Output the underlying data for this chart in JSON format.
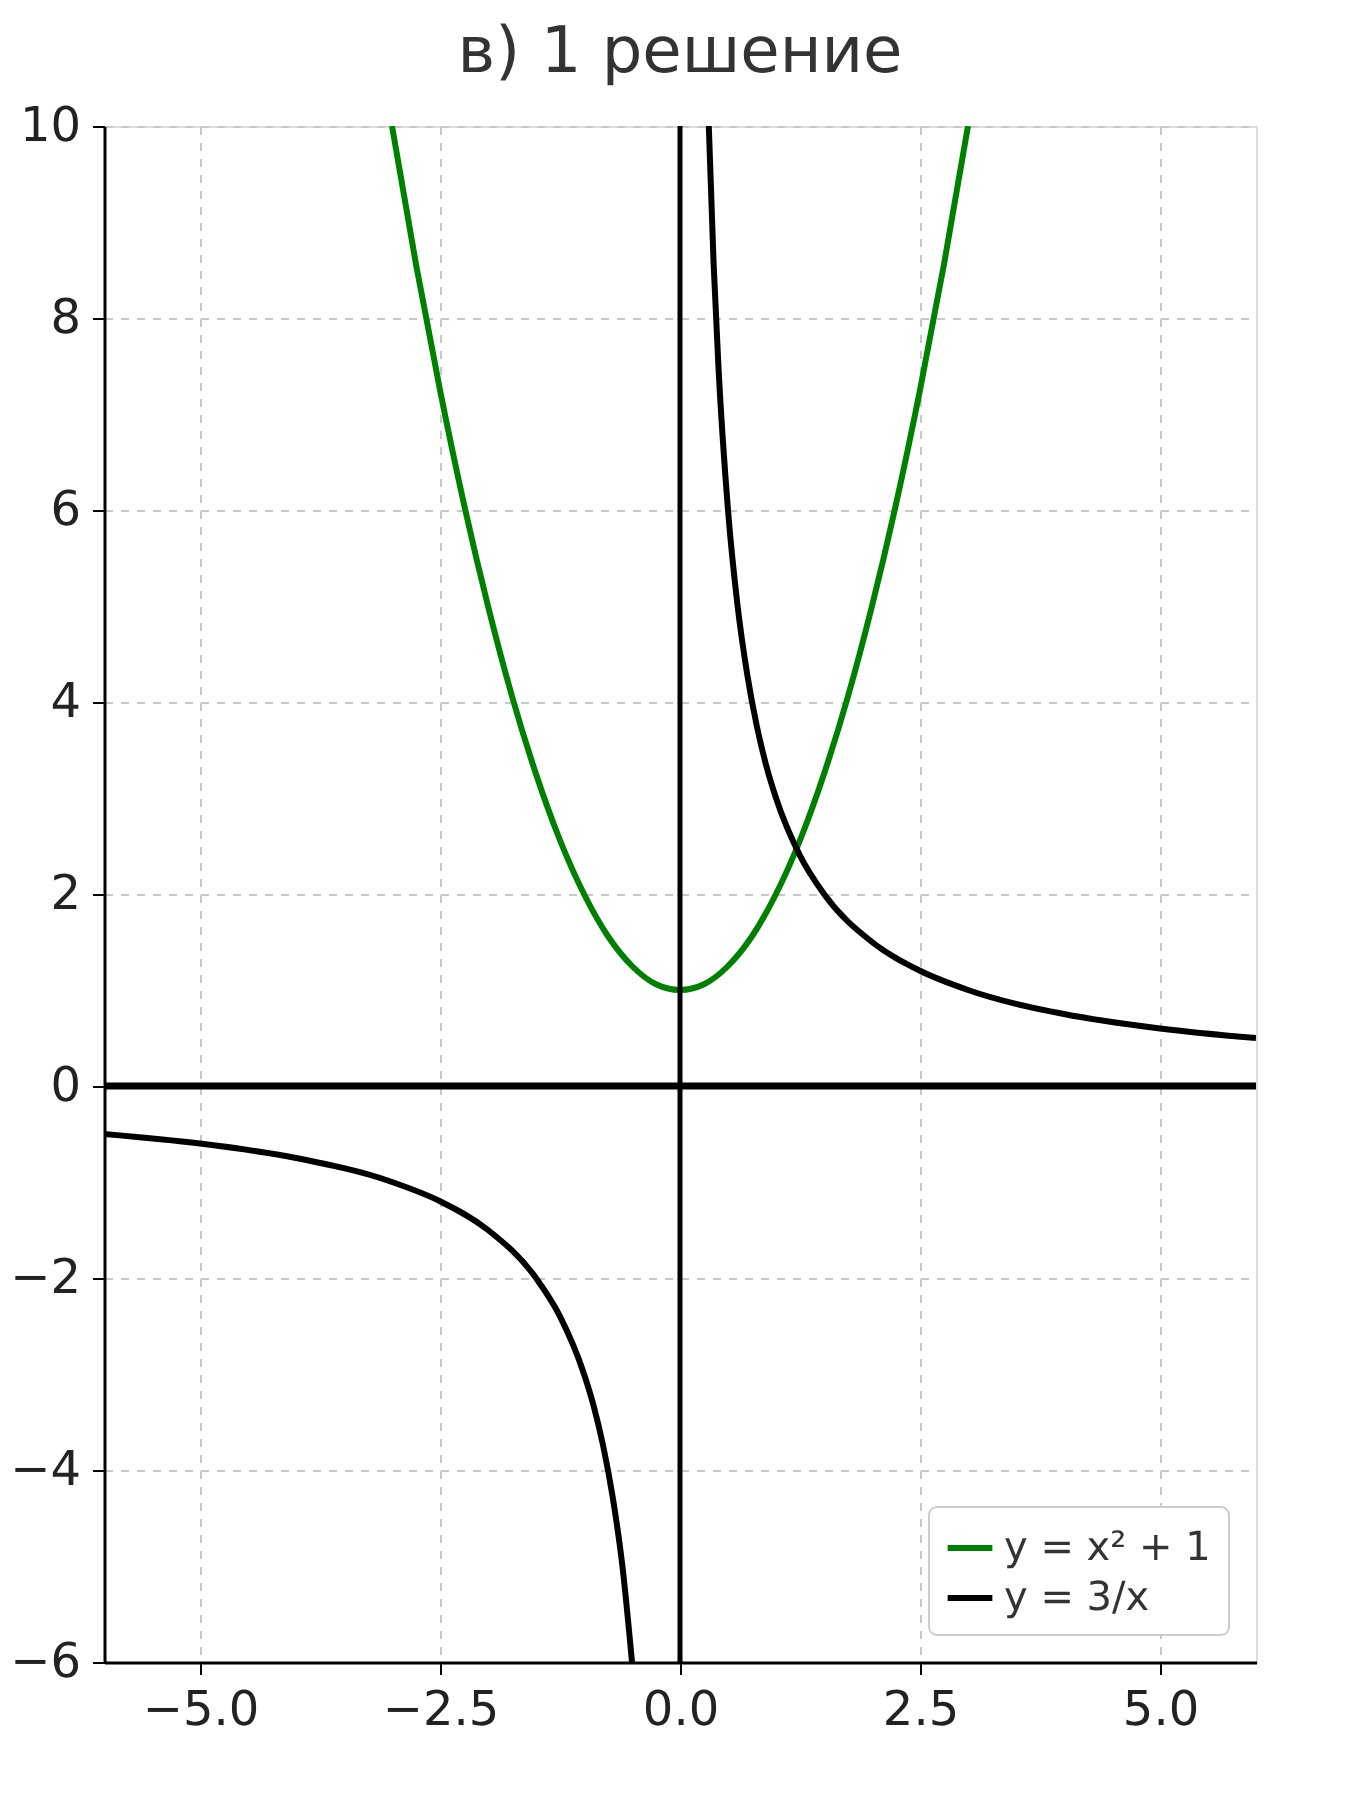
{
  "chart_data": {
    "type": "line",
    "title": "в) 1 решение",
    "xlim": [
      -6,
      6
    ],
    "ylim": [
      -6,
      10
    ],
    "xticks": [
      {
        "value": -5,
        "label": "−5.0"
      },
      {
        "value": -2.5,
        "label": "−2.5"
      },
      {
        "value": 0,
        "label": "0.0"
      },
      {
        "value": 2.5,
        "label": "2.5"
      },
      {
        "value": 5,
        "label": "5.0"
      }
    ],
    "yticks": [
      {
        "value": -6,
        "label": "−6"
      },
      {
        "value": -4,
        "label": "−4"
      },
      {
        "value": -2,
        "label": "−2"
      },
      0,
      2,
      4,
      6,
      8,
      10
    ],
    "series": [
      {
        "name": "y = x² + 1",
        "color": "#008000",
        "x": [
          -3,
          -2.75,
          -2.5,
          -2.25,
          -2,
          -1.75,
          -1.5,
          -1.25,
          -1,
          -0.75,
          -0.5,
          -0.25,
          0,
          0.25,
          0.5,
          0.75,
          1,
          1.25,
          1.5,
          1.75,
          2,
          2.25,
          2.5,
          2.75,
          3
        ],
        "values": [
          10,
          8.56,
          7.25,
          6.06,
          5,
          4.06,
          3.25,
          2.56,
          2,
          1.56,
          1.25,
          1.06,
          1,
          1.06,
          1.25,
          1.56,
          2,
          2.56,
          3.25,
          4.06,
          5,
          6.06,
          7.25,
          8.56,
          10
        ]
      },
      {
        "name": "y = 3/x",
        "color": "#000000",
        "x": [
          -6,
          -5,
          -4,
          -3,
          -2.5,
          -2,
          -1.5,
          -1.25,
          -1,
          -0.9,
          -0.8,
          -0.7,
          -0.6,
          -0.5,
          0,
          0.3,
          0.35,
          0.4,
          0.5,
          0.6,
          0.7,
          0.8,
          0.9,
          1,
          1.25,
          1.5,
          2,
          2.5,
          3,
          4,
          5,
          6
        ],
        "values": [
          -0.5,
          -0.6,
          -0.75,
          -1,
          -1.2,
          -1.5,
          -2,
          -2.4,
          -3,
          -3.33,
          -3.75,
          -4.29,
          -5,
          -6,
          null,
          10,
          8.57,
          7.5,
          6,
          5,
          4.29,
          3.75,
          3.33,
          3,
          2.4,
          2,
          1.5,
          1.2,
          1,
          0.75,
          0.6,
          0.5
        ]
      }
    ],
    "ref_lines": [
      {
        "axis": "x",
        "value": 0,
        "color": "#000000"
      },
      {
        "axis": "y",
        "value": 0,
        "color": "#000000"
      }
    ],
    "grid": true,
    "line_style": "solid",
    "legend": "bottom right"
  }
}
